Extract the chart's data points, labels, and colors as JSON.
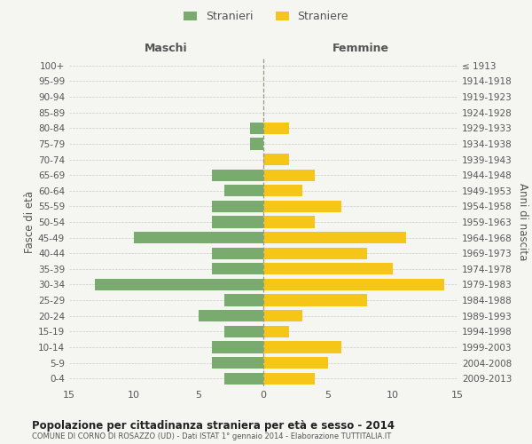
{
  "age_groups": [
    "0-4",
    "5-9",
    "10-14",
    "15-19",
    "20-24",
    "25-29",
    "30-34",
    "35-39",
    "40-44",
    "45-49",
    "50-54",
    "55-59",
    "60-64",
    "65-69",
    "70-74",
    "75-79",
    "80-84",
    "85-89",
    "90-94",
    "95-99",
    "100+"
  ],
  "birth_years": [
    "2009-2013",
    "2004-2008",
    "1999-2003",
    "1994-1998",
    "1989-1993",
    "1984-1988",
    "1979-1983",
    "1974-1978",
    "1969-1973",
    "1964-1968",
    "1959-1963",
    "1954-1958",
    "1949-1953",
    "1944-1948",
    "1939-1943",
    "1934-1938",
    "1929-1933",
    "1924-1928",
    "1919-1923",
    "1914-1918",
    "≤ 1913"
  ],
  "males": [
    3,
    4,
    4,
    3,
    5,
    3,
    13,
    4,
    4,
    10,
    4,
    4,
    3,
    4,
    0,
    1,
    1,
    0,
    0,
    0,
    0
  ],
  "females": [
    4,
    5,
    6,
    2,
    3,
    8,
    14,
    10,
    8,
    11,
    4,
    6,
    3,
    4,
    2,
    0,
    2,
    0,
    0,
    0,
    0
  ],
  "male_color": "#7aab6e",
  "female_color": "#f5c518",
  "bar_height": 0.75,
  "title": "Popolazione per cittadinanza straniera per età e sesso - 2014",
  "subtitle": "COMUNE DI CORNO DI ROSAZZO (UD) - Dati ISTAT 1° gennaio 2014 - Elaborazione TUTTITALIA.IT",
  "xlabel_left": "Maschi",
  "xlabel_right": "Femmine",
  "ylabel_left": "Fasce di età",
  "ylabel_right": "Anni di nascita",
  "xlim": 15,
  "legend_male": "Stranieri",
  "legend_female": "Straniere",
  "background_color": "#f5f5f2",
  "grid_color": "#cccccc",
  "text_color": "#555555"
}
